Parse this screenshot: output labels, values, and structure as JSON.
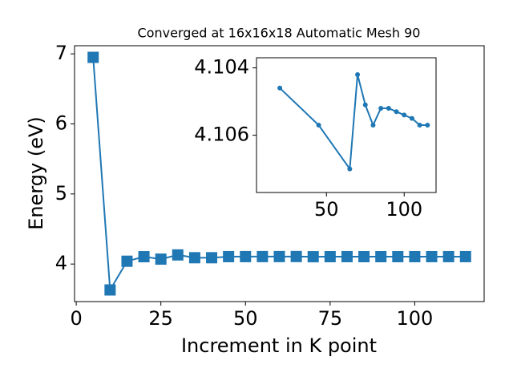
{
  "chart_data": [
    {
      "type": "line",
      "title": "Converged at 16x16x18 Automatic Mesh 90",
      "x_label": "Increment in K point",
      "y_label": "Energy (eV)",
      "x": [
        5,
        10,
        15,
        20,
        25,
        30,
        35,
        40,
        45,
        50,
        55,
        60,
        65,
        70,
        75,
        80,
        85,
        90,
        95,
        100,
        105,
        110,
        115
      ],
      "series": [
        {
          "color": "#1f77b4",
          "marker": "square",
          "values": [
            6.95,
            3.63,
            4.04,
            4.1046,
            4.07,
            4.13,
            4.09,
            4.09,
            4.1057,
            4.106,
            4.1063,
            4.1067,
            4.107,
            4.1042,
            4.1051,
            4.1057,
            4.1052,
            4.1052,
            4.1053,
            4.1054,
            4.1055,
            4.1057,
            4.1057
          ]
        }
      ],
      "xlim": [
        -0.5,
        120.5
      ],
      "xticks": [
        0,
        25,
        50,
        75,
        100
      ],
      "ylim": [
        3.464,
        7.116
      ],
      "yticks": [
        4,
        5,
        6,
        7
      ]
    },
    {
      "type": "line",
      "x": [
        20,
        45,
        65,
        70,
        75,
        80,
        85,
        90,
        95,
        100,
        105,
        110,
        115
      ],
      "series": [
        {
          "color": "#1f77b4",
          "marker": "circle",
          "values": [
            4.1046,
            4.1057,
            4.107,
            4.1042,
            4.1051,
            4.1057,
            4.1052,
            4.1052,
            4.1053,
            4.1054,
            4.1055,
            4.1057,
            4.1057
          ]
        }
      ],
      "xlim": [
        5,
        120.5
      ],
      "xticks": [
        50,
        100
      ],
      "ylim": [
        4.1077,
        4.1037
      ],
      "yticks": [
        4.104,
        4.106
      ]
    }
  ]
}
